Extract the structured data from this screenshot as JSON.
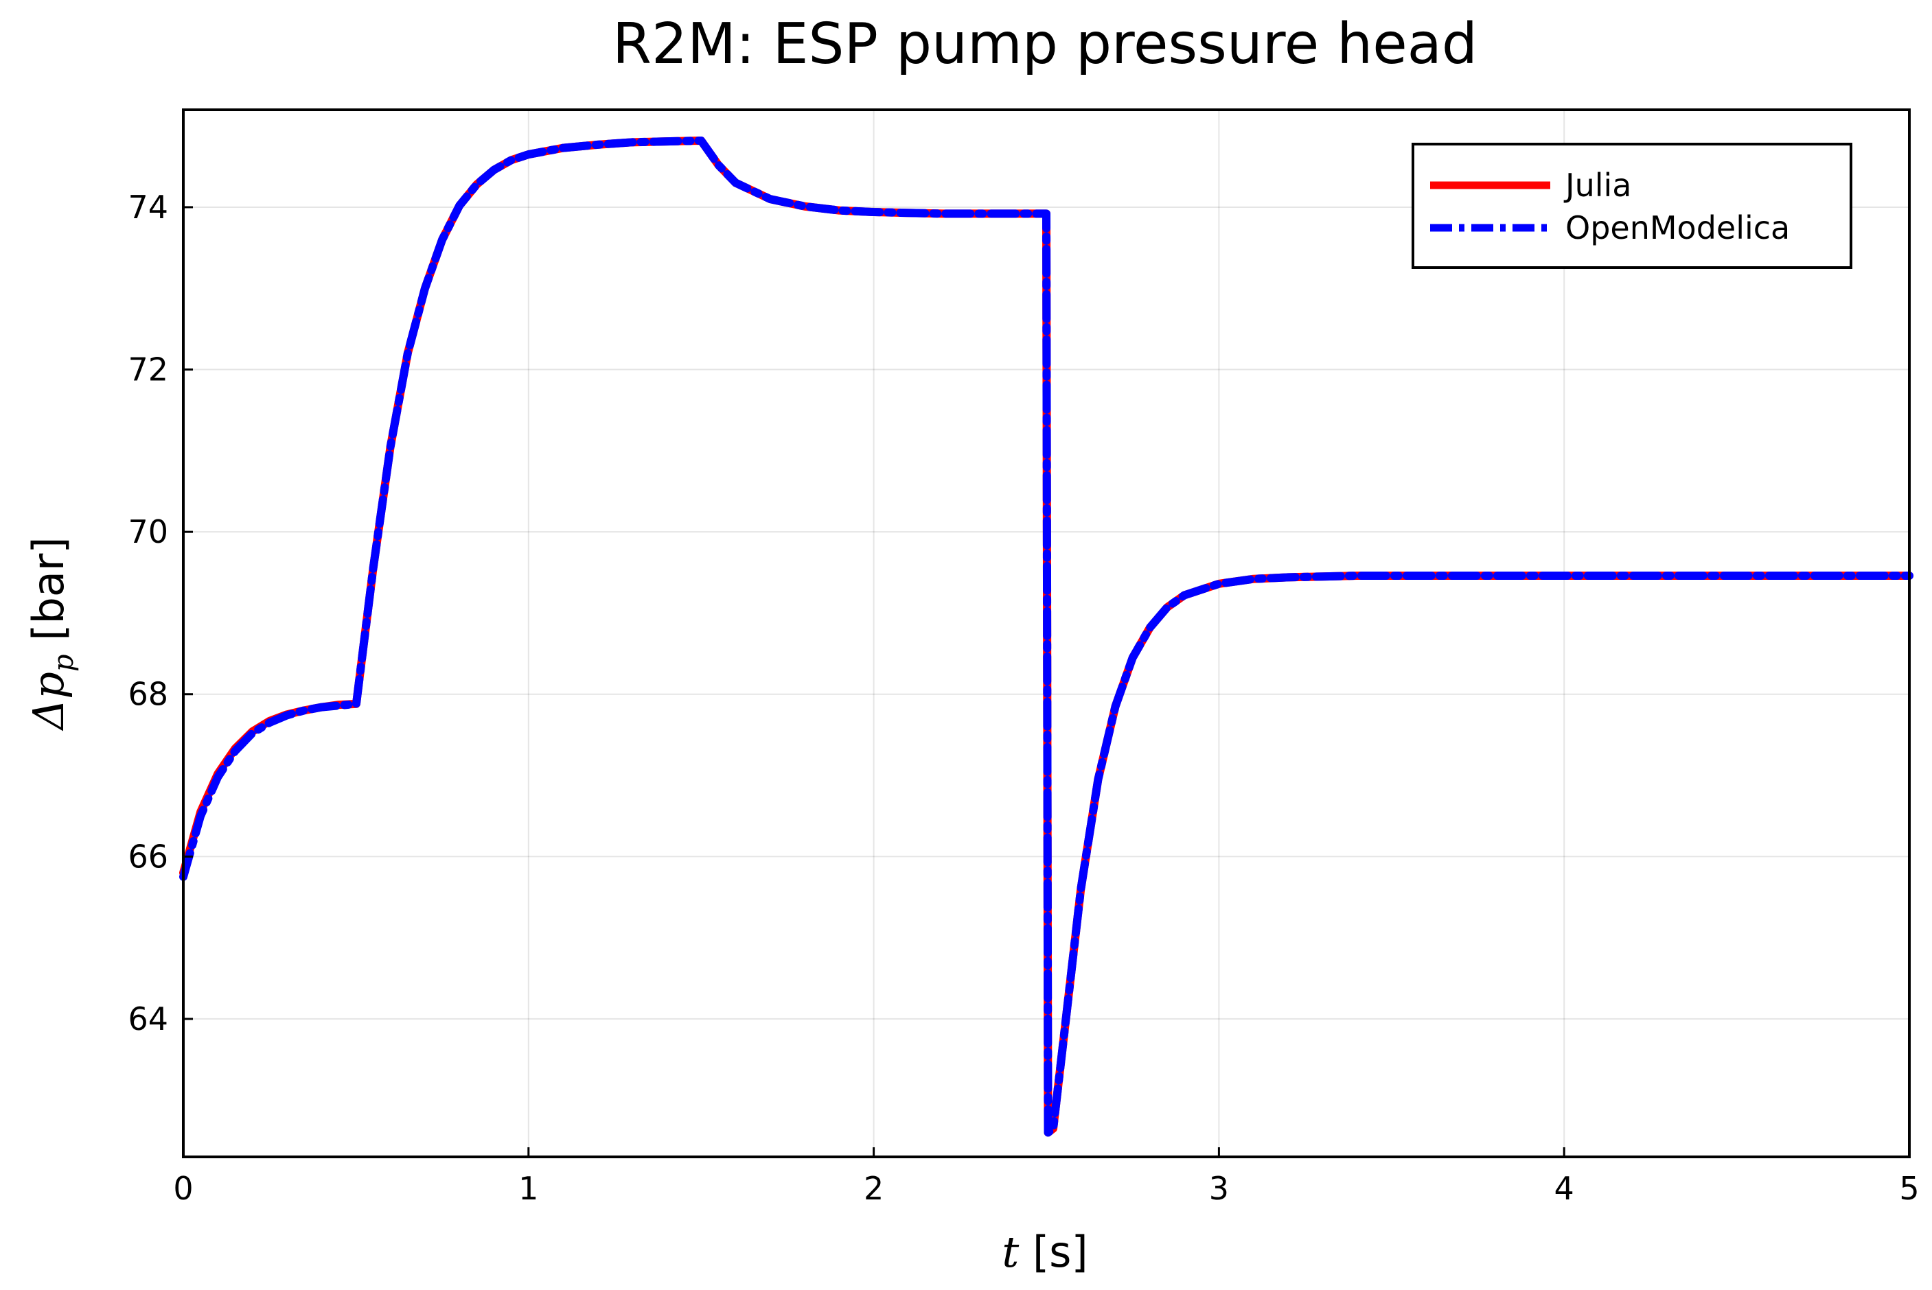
{
  "chart_data": {
    "type": "line",
    "title": "R2M: ESP pump pressure head",
    "xlabel": "t [s]",
    "xlabel_var": "t",
    "xlabel_unit": " [s]",
    "ylabel": "Δp_p [bar]",
    "ylabel_var": "Δp",
    "ylabel_sub": "p",
    "ylabel_unit": " [bar]",
    "xlim": [
      0,
      5
    ],
    "ylim": [
      62.3,
      75.2
    ],
    "xticks": [
      0,
      1,
      2,
      3,
      4,
      5
    ],
    "xtick_labels": [
      "0",
      "1",
      "2",
      "3",
      "4",
      "5"
    ],
    "yticks": [
      64,
      66,
      68,
      70,
      72,
      74
    ],
    "ytick_labels": [
      "64",
      "66",
      "68",
      "70",
      "72",
      "74"
    ],
    "grid": true,
    "legend_position": "top-right",
    "series": [
      {
        "name": "Julia",
        "color": "#ff0000",
        "style": "solid",
        "x": [
          0,
          0.05,
          0.1,
          0.15,
          0.2,
          0.25,
          0.3,
          0.35,
          0.4,
          0.45,
          0.5,
          0.501,
          0.55,
          0.6,
          0.65,
          0.7,
          0.75,
          0.8,
          0.85,
          0.9,
          0.95,
          1.0,
          1.1,
          1.2,
          1.3,
          1.4,
          1.5,
          1.55,
          1.6,
          1.7,
          1.8,
          1.9,
          2.0,
          2.1,
          2.2,
          2.3,
          2.4,
          2.5,
          2.505,
          2.52,
          2.55,
          2.6,
          2.65,
          2.7,
          2.75,
          2.8,
          2.85,
          2.9,
          3.0,
          3.1,
          3.2,
          3.3,
          3.4,
          3.5,
          3.75,
          4.0,
          4.5,
          5.0
        ],
        "y": [
          65.8,
          66.55,
          67.02,
          67.33,
          67.54,
          67.67,
          67.75,
          67.8,
          67.84,
          67.87,
          67.88,
          67.88,
          69.55,
          71.05,
          72.2,
          73.0,
          73.6,
          74.02,
          74.28,
          74.46,
          74.58,
          74.65,
          74.73,
          74.77,
          74.8,
          74.81,
          74.82,
          74.52,
          74.3,
          74.1,
          74.01,
          73.96,
          73.94,
          73.93,
          73.92,
          73.92,
          73.92,
          73.92,
          62.6,
          62.65,
          63.75,
          65.6,
          66.95,
          67.85,
          68.45,
          68.82,
          69.07,
          69.22,
          69.36,
          69.42,
          69.44,
          69.45,
          69.46,
          69.46,
          69.46,
          69.46,
          69.46,
          69.46
        ]
      },
      {
        "name": "OpenModelica",
        "color": "#0000ff",
        "style": "dashdot",
        "x": [
          0,
          0.05,
          0.1,
          0.15,
          0.2,
          0.25,
          0.3,
          0.35,
          0.4,
          0.45,
          0.5,
          0.501,
          0.55,
          0.6,
          0.65,
          0.7,
          0.75,
          0.8,
          0.85,
          0.9,
          0.95,
          1.0,
          1.1,
          1.2,
          1.3,
          1.4,
          1.5,
          1.55,
          1.6,
          1.7,
          1.8,
          1.9,
          2.0,
          2.1,
          2.2,
          2.3,
          2.4,
          2.5,
          2.505,
          2.52,
          2.55,
          2.6,
          2.65,
          2.7,
          2.75,
          2.8,
          2.85,
          2.9,
          3.0,
          3.1,
          3.2,
          3.3,
          3.4,
          3.5,
          3.75,
          4.0,
          4.5,
          5.0
        ],
        "y": [
          65.75,
          66.5,
          66.98,
          67.3,
          67.52,
          67.65,
          67.74,
          67.8,
          67.84,
          67.86,
          67.88,
          67.88,
          69.55,
          71.05,
          72.2,
          73.0,
          73.6,
          74.02,
          74.28,
          74.46,
          74.58,
          74.65,
          74.73,
          74.77,
          74.8,
          74.81,
          74.82,
          74.52,
          74.3,
          74.1,
          74.01,
          73.96,
          73.94,
          73.93,
          73.92,
          73.92,
          73.92,
          73.92,
          62.6,
          62.65,
          63.75,
          65.6,
          66.95,
          67.85,
          68.45,
          68.82,
          69.07,
          69.22,
          69.36,
          69.42,
          69.44,
          69.45,
          69.46,
          69.46,
          69.46,
          69.46,
          69.46,
          69.46
        ]
      }
    ]
  }
}
